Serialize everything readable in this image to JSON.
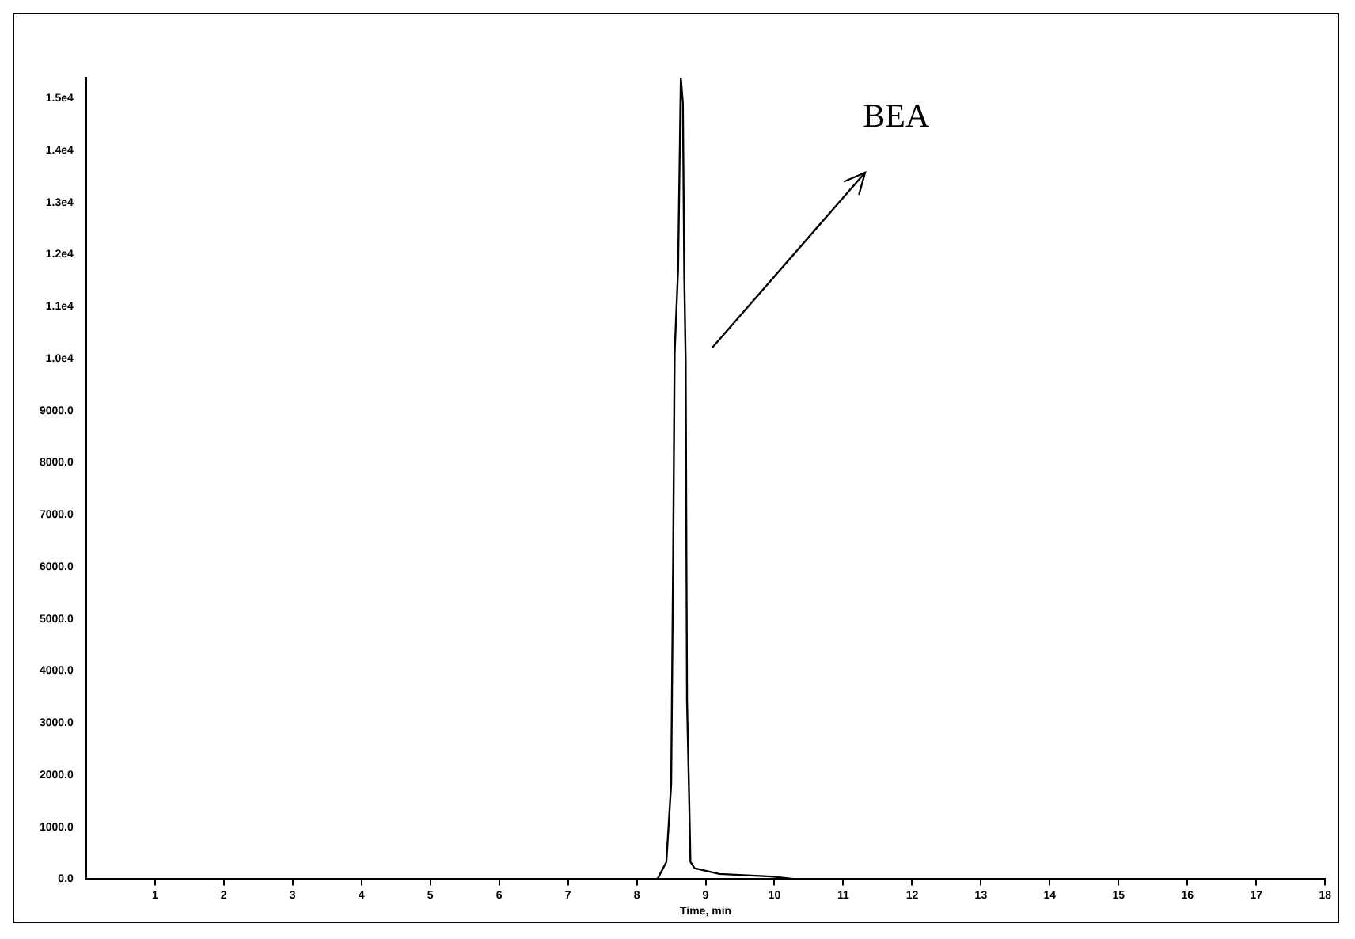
{
  "chart_data": {
    "type": "line",
    "xlabel": "Time, min",
    "x": [
      0,
      8.3,
      8.43,
      8.5,
      8.53,
      8.55,
      8.6,
      8.64,
      8.67,
      8.69,
      8.71,
      8.73,
      8.76,
      8.78,
      8.84,
      9.2,
      9.96,
      10.3,
      18
    ],
    "series": [
      {
        "color": "#000000",
        "values": [
          0,
          0,
          330,
          1830,
          6370,
          10100,
          11700,
          15400,
          14900,
          11600,
          9970,
          3420,
          1620,
          330,
          210,
          100,
          50,
          0,
          0
        ]
      }
    ],
    "xlim": [
      0,
      18
    ],
    "xticks": [
      1,
      2,
      3,
      4,
      5,
      6,
      7,
      8,
      9,
      10,
      11,
      12,
      13,
      14,
      15,
      16,
      17,
      18
    ],
    "ylim": [
      0,
      15400
    ],
    "yticks": [
      {
        "value": 0,
        "label": "0.0"
      },
      {
        "value": 1000,
        "label": "1000.0"
      },
      {
        "value": 2000,
        "label": "2000.0"
      },
      {
        "value": 3000,
        "label": "3000.0"
      },
      {
        "value": 4000,
        "label": "4000.0"
      },
      {
        "value": 5000,
        "label": "5000.0"
      },
      {
        "value": 6000,
        "label": "6000.0"
      },
      {
        "value": 7000,
        "label": "7000.0"
      },
      {
        "value": 8000,
        "label": "8000.0"
      },
      {
        "value": 9000,
        "label": "9000.0"
      },
      {
        "value": 10000,
        "label": "1.0e4"
      },
      {
        "value": 11000,
        "label": "1.1e4"
      },
      {
        "value": 12000,
        "label": "1.2e4"
      },
      {
        "value": 13000,
        "label": "1.3e4"
      },
      {
        "value": 14000,
        "label": "1.4e4"
      },
      {
        "value": 15000,
        "label": "1.5e4"
      }
    ],
    "annotations": [
      "BEA"
    ],
    "grid": false,
    "legend": false,
    "marker": "none",
    "line_style": "solid"
  }
}
